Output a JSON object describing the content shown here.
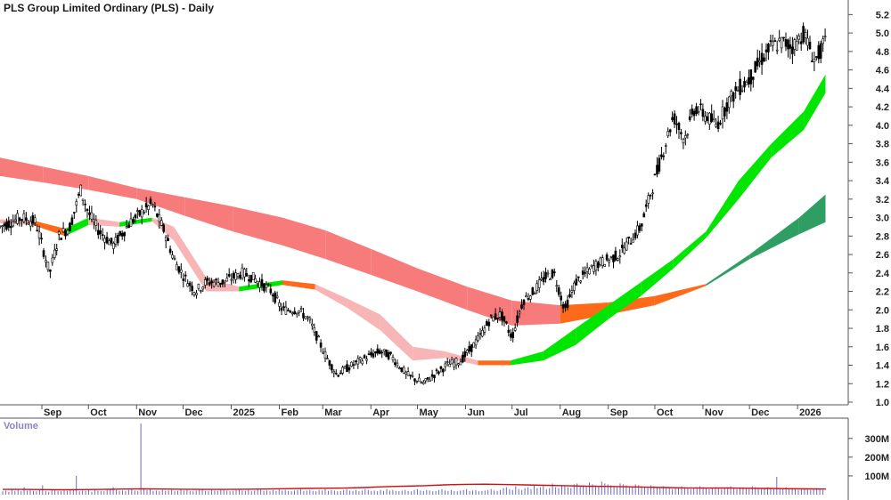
{
  "title": "PLS Group Limited Ordinary (PLS) - Daily",
  "volume_label": "Volume",
  "colors": {
    "price_bar": "#000000",
    "long_ribbon_down": "#f77b7b",
    "long_ribbon_up": "#2f9e63",
    "short_ribbon_down": "#f7b5b5",
    "short_ribbon_up": "#00e600",
    "cross_zone": "#ff6a1a",
    "volume_bar": "#6d6ac4",
    "volume_ma": "#d01010",
    "axis": "#555555"
  },
  "chart_data": [
    {
      "type": "candlestick",
      "title": "PLS Group Limited Ordinary (PLS) - Daily",
      "x_tick_labels": [
        "Sep",
        "Oct",
        "Nov",
        "Dec",
        "2025",
        "Feb",
        "Mar",
        "Apr",
        "May",
        "Jun",
        "Jul",
        "Aug",
        "Sep",
        "Oct",
        "Nov",
        "Dec",
        "2026"
      ],
      "y_tick_labels": [
        "1.0",
        "1.2",
        "1.4",
        "1.6",
        "1.8",
        "2.0",
        "2.2",
        "2.4",
        "2.6",
        "2.8",
        "3.0",
        "3.2",
        "3.4",
        "3.6",
        "3.8",
        "4.0",
        "4.2",
        "4.4",
        "4.6",
        "4.8",
        "5.0",
        "5.2"
      ],
      "ylim": [
        1.0,
        5.3
      ],
      "grid": false,
      "price_path": {
        "x": [
          "2024-08-05",
          "2024-08-19",
          "2024-08-28",
          "2024-09-06",
          "2024-09-12",
          "2024-09-19",
          "2024-09-26",
          "2024-10-01",
          "2024-10-08",
          "2024-10-17",
          "2024-10-28",
          "2024-11-04",
          "2024-11-11",
          "2024-11-19",
          "2024-11-25",
          "2024-12-02",
          "2024-12-09",
          "2024-12-16",
          "2024-12-27",
          "2025-01-08",
          "2025-01-15",
          "2025-01-27",
          "2025-02-03",
          "2025-02-13",
          "2025-02-20",
          "2025-03-03",
          "2025-03-10",
          "2025-03-20",
          "2025-03-31",
          "2025-04-07",
          "2025-04-14",
          "2025-04-24",
          "2025-05-05",
          "2025-05-12",
          "2025-05-20",
          "2025-05-29",
          "2025-06-03",
          "2025-06-10",
          "2025-06-17",
          "2025-06-24",
          "2025-07-01",
          "2025-07-08",
          "2025-07-15",
          "2025-07-22",
          "2025-07-28",
          "2025-08-04",
          "2025-08-11",
          "2025-08-18",
          "2025-08-25",
          "2025-09-02",
          "2025-09-08",
          "2025-09-15",
          "2025-09-22",
          "2025-09-29",
          "2025-10-06",
          "2025-10-13",
          "2025-10-20",
          "2025-10-27",
          "2025-11-03",
          "2025-11-10",
          "2025-11-17",
          "2025-11-24",
          "2025-12-01",
          "2025-12-08",
          "2025-12-15",
          "2025-12-22",
          "2025-12-29",
          "2026-01-05",
          "2026-01-12",
          "2026-01-19"
        ],
        "y": [
          2.9,
          3.0,
          2.95,
          2.4,
          2.8,
          2.9,
          3.3,
          3.05,
          2.85,
          2.7,
          2.95,
          3.05,
          3.15,
          2.85,
          2.55,
          2.35,
          2.2,
          2.3,
          2.3,
          2.4,
          2.35,
          2.2,
          2.0,
          2.0,
          1.9,
          1.5,
          1.3,
          1.4,
          1.5,
          1.55,
          1.5,
          1.3,
          1.2,
          1.3,
          1.4,
          1.45,
          1.55,
          1.7,
          1.9,
          1.95,
          1.7,
          2.1,
          2.2,
          2.35,
          2.4,
          2.0,
          2.3,
          2.4,
          2.5,
          2.55,
          2.6,
          2.75,
          2.9,
          3.3,
          3.7,
          4.1,
          3.85,
          4.2,
          4.1,
          4.0,
          4.25,
          4.4,
          4.5,
          4.7,
          4.85,
          4.9,
          4.85,
          5.0,
          4.7,
          4.9
        ]
      },
      "short_ribbon": {
        "x": [
          "2024-08-05",
          "2024-08-26",
          "2024-09-16",
          "2024-10-01",
          "2024-10-21",
          "2024-11-11",
          "2024-11-25",
          "2024-12-16",
          "2025-01-06",
          "2025-02-03",
          "2025-02-24",
          "2025-03-17",
          "2025-04-07",
          "2025-04-28",
          "2025-05-19",
          "2025-06-09",
          "2025-06-30",
          "2025-07-21",
          "2025-08-11",
          "2025-09-01",
          "2025-09-22",
          "2025-10-13",
          "2025-11-03",
          "2025-11-24",
          "2025-12-15",
          "2026-01-05",
          "2026-01-19"
        ],
        "upper": [
          2.98,
          2.97,
          2.88,
          3.0,
          2.95,
          3.0,
          2.9,
          2.35,
          2.25,
          2.32,
          2.28,
          2.12,
          1.95,
          1.6,
          1.55,
          1.45,
          1.45,
          1.55,
          1.8,
          2.05,
          2.3,
          2.55,
          2.85,
          3.4,
          3.8,
          4.15,
          4.55
        ],
        "lower": [
          2.94,
          2.92,
          2.8,
          2.92,
          2.9,
          2.96,
          2.75,
          2.2,
          2.2,
          2.27,
          2.22,
          2.02,
          1.78,
          1.45,
          1.48,
          1.4,
          1.4,
          1.45,
          1.62,
          1.9,
          2.15,
          2.45,
          2.78,
          3.2,
          3.65,
          3.95,
          4.35
        ]
      },
      "long_ribbon": {
        "x": [
          "2024-08-05",
          "2024-09-02",
          "2024-10-01",
          "2024-11-01",
          "2024-12-02",
          "2025-01-02",
          "2025-02-03",
          "2025-03-03",
          "2025-04-01",
          "2025-05-01",
          "2025-06-02",
          "2025-07-01",
          "2025-08-01",
          "2025-09-01",
          "2025-10-01",
          "2025-11-03",
          "2025-12-01",
          "2026-01-02",
          "2026-01-19"
        ],
        "upper": [
          3.65,
          3.55,
          3.45,
          3.32,
          3.22,
          3.12,
          3.0,
          2.86,
          2.66,
          2.45,
          2.25,
          2.1,
          2.05,
          2.08,
          2.15,
          2.28,
          2.6,
          3.0,
          3.25
        ],
        "lower": [
          3.45,
          3.38,
          3.3,
          3.2,
          3.02,
          2.85,
          2.7,
          2.55,
          2.38,
          2.2,
          2.0,
          1.83,
          1.85,
          1.95,
          2.05,
          2.26,
          2.55,
          2.82,
          2.95
        ]
      }
    },
    {
      "type": "bar",
      "title": "Volume",
      "y_tick_labels": [
        "100M",
        "200M",
        "300M"
      ],
      "ylim": [
        0,
        370
      ],
      "volumes_m": [
        18,
        22,
        15,
        30,
        20,
        25,
        18,
        40,
        22,
        30,
        20,
        18,
        25,
        50,
        20,
        15,
        30,
        25,
        20,
        18,
        22,
        20,
        25,
        30,
        100,
        18,
        22,
        20,
        25,
        15,
        30,
        22,
        20,
        18,
        25,
        30,
        40,
        25,
        20,
        22,
        18,
        25,
        30,
        22,
        20,
        380,
        35,
        25,
        30,
        20,
        22,
        18,
        25,
        20,
        22,
        25,
        18,
        20,
        30,
        22,
        25,
        20,
        18,
        22,
        25,
        30,
        20,
        18,
        25,
        22,
        20,
        30,
        25,
        22,
        18,
        20,
        25,
        30,
        22,
        20,
        25,
        18,
        22,
        30,
        25,
        20,
        22,
        18,
        25,
        20,
        30,
        22,
        25,
        20,
        18,
        22,
        25,
        30,
        20,
        22,
        25,
        20,
        18,
        25,
        22,
        30,
        20,
        25,
        22,
        18,
        20,
        25,
        30,
        22,
        20,
        25,
        18,
        22,
        30,
        25,
        20,
        22,
        18,
        25,
        20,
        30,
        22,
        25,
        20,
        18,
        22,
        25,
        20,
        18,
        25,
        30,
        22,
        20,
        25,
        22,
        18,
        20,
        25,
        30,
        22,
        20,
        25,
        20,
        18,
        22,
        25,
        30,
        20,
        22,
        25,
        18,
        20,
        22,
        25,
        30,
        22,
        20,
        25,
        35,
        40,
        30,
        25,
        45,
        30,
        25,
        35,
        40,
        30,
        50,
        35,
        40,
        45,
        30,
        35,
        60,
        40,
        35,
        45,
        50,
        40,
        35,
        55,
        60,
        45,
        50,
        40,
        65,
        55,
        50,
        45,
        70,
        60,
        55,
        50,
        45,
        40,
        60,
        55,
        50,
        45,
        40,
        55,
        50,
        45,
        40,
        35,
        50,
        45,
        40,
        35,
        45,
        40,
        35,
        30,
        40,
        35,
        45,
        40,
        35,
        30,
        35,
        40,
        45,
        40,
        35,
        30,
        35,
        40,
        35,
        30,
        35,
        40,
        45,
        35,
        30,
        35,
        40,
        35,
        30,
        45,
        40,
        35,
        30,
        35,
        40,
        35,
        30,
        95,
        30,
        35,
        40,
        30,
        35,
        30,
        25,
        30,
        35,
        30,
        25,
        30,
        35,
        30,
        25
      ],
      "volume_ma_m": [
        28,
        28,
        27,
        26,
        27,
        28,
        30,
        31,
        30,
        29,
        28,
        28,
        29,
        30,
        32,
        33,
        34,
        35,
        38,
        42,
        45,
        48,
        52,
        55,
        56,
        54,
        52,
        50,
        48,
        45,
        44,
        42,
        40,
        38,
        36,
        35,
        36,
        34,
        33,
        32,
        31,
        30
      ]
    }
  ]
}
